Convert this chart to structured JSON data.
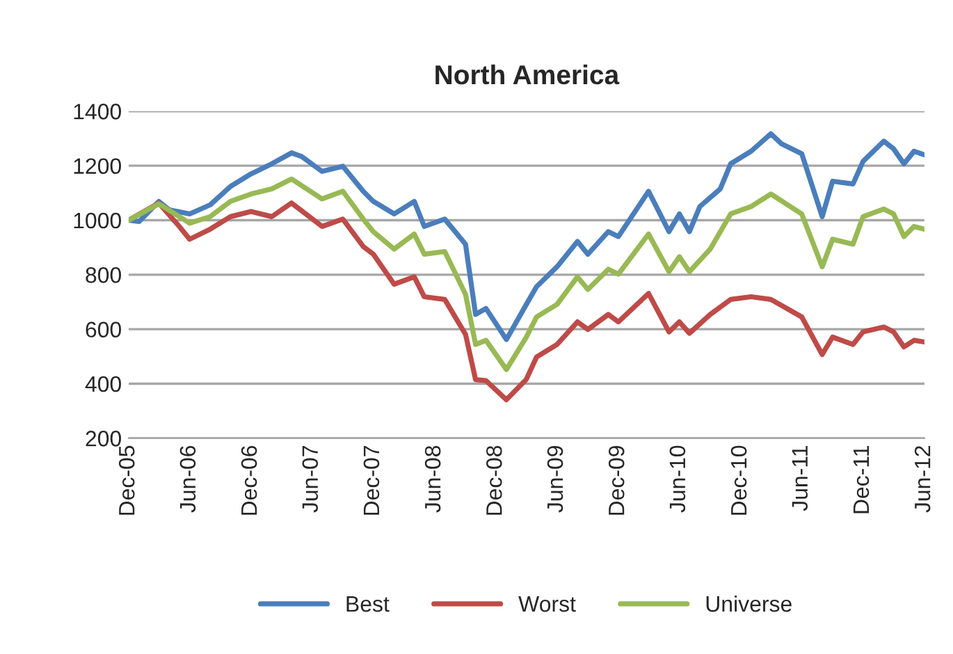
{
  "chart_data": {
    "type": "line",
    "title": "North America",
    "xlim": [
      "2005-12",
      "2012-06"
    ],
    "xticks": [
      {
        "value": "2005-12",
        "label": "Dec-05"
      },
      {
        "value": "2006-06",
        "label": "Jun-06"
      },
      {
        "value": "2006-12",
        "label": "Dec-06"
      },
      {
        "value": "2007-06",
        "label": "Jun-07"
      },
      {
        "value": "2007-12",
        "label": "Dec-07"
      },
      {
        "value": "2008-06",
        "label": "Jun-08"
      },
      {
        "value": "2008-12",
        "label": "Dec-08"
      },
      {
        "value": "2009-06",
        "label": "Jun-09"
      },
      {
        "value": "2009-12",
        "label": "Dec-09"
      },
      {
        "value": "2010-06",
        "label": "Jun-10"
      },
      {
        "value": "2010-12",
        "label": "Dec-10"
      },
      {
        "value": "2011-06",
        "label": "Jun-11"
      },
      {
        "value": "2011-12",
        "label": "Dec-11"
      },
      {
        "value": "2012-06",
        "label": "Jun-12"
      }
    ],
    "ylim": [
      200,
      1400
    ],
    "yticks": [
      200,
      400,
      600,
      800,
      1000,
      1200,
      1400
    ],
    "grid": "y",
    "legend": "bottom",
    "marker": "none",
    "line_style": "solid",
    "series": [
      {
        "name": "Best",
        "color": "#4a7ebb",
        "x": [
          "2005-12",
          "2006-01",
          "2006-03",
          "2006-04",
          "2006-06",
          "2006-08",
          "2006-10",
          "2006-12",
          "2007-02",
          "2007-04",
          "2007-05",
          "2007-07",
          "2007-09",
          "2007-11",
          "2007-12",
          "2008-02",
          "2008-04",
          "2008-05",
          "2008-07",
          "2008-09",
          "2008-10",
          "2008-11",
          "2009-01",
          "2009-03",
          "2009-04",
          "2009-06",
          "2009-08",
          "2009-09",
          "2009-11",
          "2009-12",
          "2010-03",
          "2010-05",
          "2010-06",
          "2010-07",
          "2010-08",
          "2010-10",
          "2010-11",
          "2011-01",
          "2011-03",
          "2011-04",
          "2011-06",
          "2011-08",
          "2011-09",
          "2011-11",
          "2011-12",
          "2012-02",
          "2012-03",
          "2012-04",
          "2012-05",
          "2012-06"
        ],
        "values": [
          1000,
          995,
          1069,
          1038,
          1023,
          1056,
          1124,
          1170,
          1207,
          1247,
          1234,
          1179,
          1198,
          1106,
          1069,
          1023,
          1069,
          977,
          1004,
          912,
          654,
          676,
          562,
          690,
          756,
          829,
          922,
          875,
          958,
          940,
          1106,
          958,
          1023,
          958,
          1050,
          1115,
          1207,
          1253,
          1317,
          1281,
          1244,
          1013,
          1143,
          1133,
          1216,
          1290,
          1262,
          1207,
          1253,
          1240
        ]
      },
      {
        "name": "Worst",
        "color": "#be4b48",
        "x": [
          "2005-12",
          "2006-03",
          "2006-05",
          "2006-06",
          "2006-08",
          "2006-10",
          "2006-12",
          "2007-02",
          "2007-04",
          "2007-07",
          "2007-09",
          "2007-11",
          "2007-12",
          "2008-02",
          "2008-04",
          "2008-05",
          "2008-07",
          "2008-09",
          "2008-10",
          "2008-11",
          "2009-01",
          "2009-03",
          "2009-04",
          "2009-06",
          "2009-08",
          "2009-09",
          "2009-11",
          "2009-12",
          "2010-03",
          "2010-05",
          "2010-06",
          "2010-07",
          "2010-09",
          "2010-11",
          "2011-01",
          "2011-03",
          "2011-06",
          "2011-08",
          "2011-09",
          "2011-11",
          "2011-12",
          "2012-02",
          "2012-03",
          "2012-04",
          "2012-05",
          "2012-06"
        ],
        "values": [
          1000,
          1063,
          977,
          930,
          967,
          1013,
          1032,
          1013,
          1063,
          977,
          1004,
          903,
          875,
          765,
          792,
          719,
          709,
          581,
          415,
          411,
          341,
          415,
          498,
          544,
          627,
          599,
          654,
          627,
          731,
          590,
          627,
          585,
          654,
          709,
          719,
          709,
          645,
          507,
          571,
          544,
          590,
          608,
          590,
          535,
          559,
          553
        ]
      },
      {
        "name": "Universe",
        "color": "#98b954",
        "x": [
          "2005-12",
          "2006-03",
          "2006-06",
          "2006-08",
          "2006-10",
          "2006-12",
          "2007-02",
          "2007-04",
          "2007-07",
          "2007-09",
          "2007-11",
          "2007-12",
          "2008-02",
          "2008-04",
          "2008-05",
          "2008-07",
          "2008-09",
          "2008-10",
          "2008-11",
          "2009-01",
          "2009-03",
          "2009-04",
          "2009-06",
          "2009-08",
          "2009-09",
          "2009-11",
          "2009-12",
          "2010-03",
          "2010-05",
          "2010-06",
          "2010-07",
          "2010-09",
          "2010-11",
          "2011-01",
          "2011-03",
          "2011-06",
          "2011-08",
          "2011-09",
          "2011-11",
          "2011-12",
          "2012-02",
          "2012-03",
          "2012-04",
          "2012-05",
          "2012-06"
        ],
        "values": [
          1000,
          1060,
          989,
          1013,
          1069,
          1096,
          1115,
          1151,
          1078,
          1106,
          1004,
          958,
          894,
          949,
          875,
          885,
          728,
          544,
          559,
          452,
          570,
          645,
          691,
          792,
          746,
          820,
          802,
          949,
          811,
          866,
          811,
          894,
          1023,
          1050,
          1096,
          1023,
          829,
          930,
          912,
          1013,
          1041,
          1023,
          940,
          977,
          967
        ]
      }
    ]
  }
}
